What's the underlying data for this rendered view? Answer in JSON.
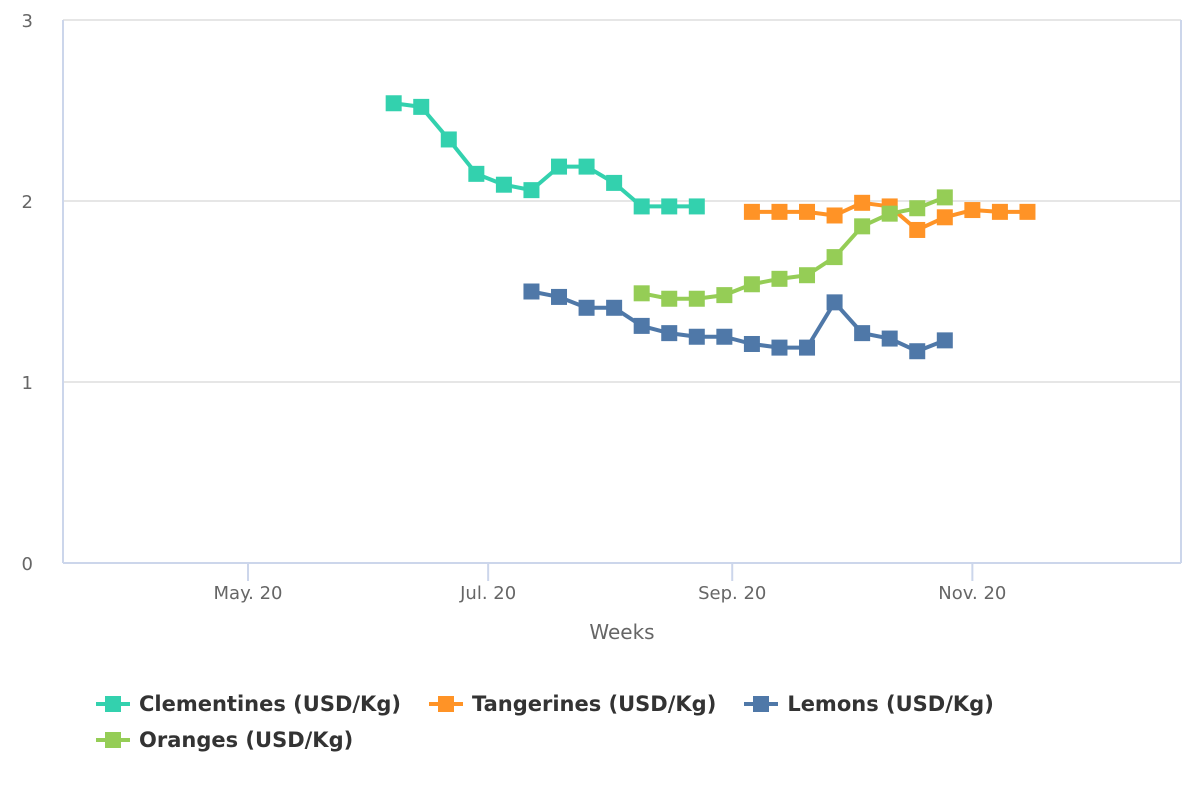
{
  "chart_data": {
    "type": "line",
    "title": "",
    "xlabel": "Weeks",
    "ylabel": "",
    "xlim": [
      "2020-03-15",
      "2020-12-24"
    ],
    "ylim": [
      0,
      3
    ],
    "yticks": [
      0,
      1,
      2,
      3
    ],
    "xticks": [
      {
        "date": "2020-05-01",
        "label": "May. 20"
      },
      {
        "date": "2020-07-01",
        "label": "Jul. 20"
      },
      {
        "date": "2020-09-01",
        "label": "Sep. 20"
      },
      {
        "date": "2020-11-01",
        "label": "Nov. 20"
      }
    ],
    "grid": "horizontal",
    "legend_position": "bottom",
    "series": [
      {
        "name": "Clementines (USD/Kg)",
        "color": "#33d1ae",
        "x": [
          "2020-06-07",
          "2020-06-14",
          "2020-06-21",
          "2020-06-28",
          "2020-07-05",
          "2020-07-12",
          "2020-07-19",
          "2020-07-26",
          "2020-08-02",
          "2020-08-09",
          "2020-08-16",
          "2020-08-23"
        ],
        "values": [
          2.54,
          2.52,
          2.34,
          2.15,
          2.09,
          2.06,
          2.19,
          2.19,
          2.1,
          1.97,
          1.97,
          1.97
        ]
      },
      {
        "name": "Tangerines (USD/Kg)",
        "color": "#ff9326",
        "x": [
          "2020-09-06",
          "2020-09-13",
          "2020-09-20",
          "2020-09-27",
          "2020-10-04",
          "2020-10-11",
          "2020-10-18",
          "2020-10-25",
          "2020-11-01",
          "2020-11-08",
          "2020-11-15"
        ],
        "values": [
          1.94,
          1.94,
          1.94,
          1.92,
          1.99,
          1.97,
          1.84,
          1.91,
          1.95,
          1.94,
          1.94
        ]
      },
      {
        "name": "Lemons (USD/Kg)",
        "color": "#4f78a8",
        "x": [
          "2020-07-12",
          "2020-07-19",
          "2020-07-26",
          "2020-08-02",
          "2020-08-09",
          "2020-08-16",
          "2020-08-23",
          "2020-08-30",
          "2020-09-06",
          "2020-09-13",
          "2020-09-20",
          "2020-09-27",
          "2020-10-04",
          "2020-10-11",
          "2020-10-18",
          "2020-10-25"
        ],
        "values": [
          1.5,
          1.47,
          1.41,
          1.41,
          1.31,
          1.27,
          1.25,
          1.25,
          1.21,
          1.19,
          1.19,
          1.44,
          1.27,
          1.24,
          1.17,
          1.23
        ]
      },
      {
        "name": "Oranges (USD/Kg)",
        "color": "#95cd56",
        "x": [
          "2020-08-09",
          "2020-08-16",
          "2020-08-23",
          "2020-08-30",
          "2020-09-06",
          "2020-09-13",
          "2020-09-20",
          "2020-09-27",
          "2020-10-04",
          "2020-10-11",
          "2020-10-18",
          "2020-10-25"
        ],
        "values": [
          1.49,
          1.46,
          1.46,
          1.48,
          1.54,
          1.57,
          1.59,
          1.69,
          1.86,
          1.93,
          1.96,
          2.02
        ]
      }
    ]
  },
  "legend": {
    "rows": [
      [
        0,
        1,
        2
      ],
      [
        3
      ]
    ]
  }
}
